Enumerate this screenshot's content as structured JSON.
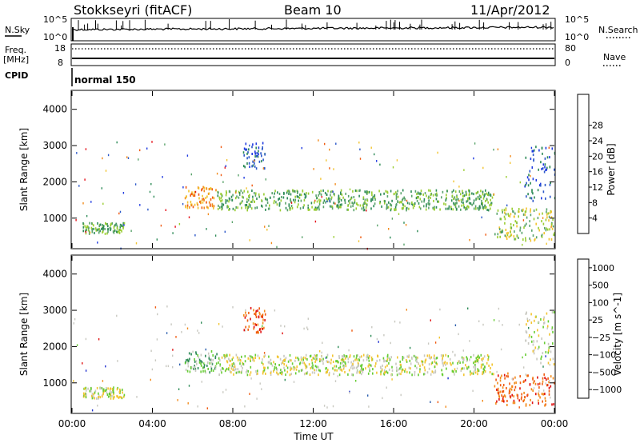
{
  "header": {
    "station": "Stokkseyri (fitACF)",
    "beam": "Beam 10",
    "date": "11/Apr/2012"
  },
  "noise_panel": {
    "left_label": "N.Sky",
    "right_label": "N.Search",
    "left_ticks": [
      "10^5",
      "10^0"
    ],
    "right_ticks": [
      "10^5",
      "10^0"
    ]
  },
  "freq_panel": {
    "left_label_1": "Freq.",
    "left_label_2": "[MHz]",
    "right_label": "Nave",
    "left_ticks": [
      "18",
      "8"
    ],
    "right_ticks": [
      "80",
      "0"
    ]
  },
  "cpid": {
    "label": "CPID",
    "value": "normal 150"
  },
  "x_axis": {
    "label": "Time UT",
    "ticks": [
      "00:00",
      "04:00",
      "08:00",
      "12:00",
      "16:00",
      "20:00",
      "00:00"
    ],
    "tick_hours": [
      0,
      4,
      8,
      12,
      16,
      20,
      24
    ]
  },
  "chart_data": [
    {
      "type": "heatmap",
      "name": "power",
      "ylabel": "Slant Range [km]",
      "xlim_hours": [
        0,
        24
      ],
      "ylim_km": [
        180,
        4500
      ],
      "y_ticks": [
        1000,
        2000,
        3000,
        4000
      ],
      "colorbar": {
        "label": "Power [dB]",
        "ticks": [
          "4",
          "8",
          "12",
          "16",
          "20",
          "24",
          "28"
        ],
        "colors": [
          "#1f3ae0",
          "#2b57c9",
          "#2e8b57",
          "#5aa36b",
          "#9acd32",
          "#f2c430",
          "#f28a1a",
          "#f05a0f",
          "#e5101a"
        ]
      },
      "regions": [
        {
          "t": [
            0.5,
            2.6
          ],
          "r": [
            600,
            900
          ],
          "level": 3
        },
        {
          "t": [
            5.6,
            7.2
          ],
          "r": [
            1300,
            1900
          ],
          "level": 6
        },
        {
          "t": [
            7.2,
            21.0
          ],
          "r": [
            1250,
            1800
          ],
          "level": 3
        },
        {
          "t": [
            8.5,
            9.6
          ],
          "r": [
            2400,
            3100
          ],
          "level": 1
        },
        {
          "t": [
            21.0,
            24.0
          ],
          "r": [
            400,
            1300
          ],
          "level": 4
        },
        {
          "t": [
            22.5,
            24.0
          ],
          "r": [
            1500,
            3000
          ],
          "level": 1
        }
      ]
    },
    {
      "type": "heatmap",
      "name": "velocity",
      "ylabel": "Slant Range [km]",
      "xlim_hours": [
        0,
        24
      ],
      "ylim_km": [
        180,
        4500
      ],
      "y_ticks": [
        1000,
        2000,
        3000,
        4000
      ],
      "colorbar": {
        "label": "Velocity [m s^-1]",
        "ticks": [
          "1000",
          "500",
          "100",
          "25",
          "−25",
          "−100",
          "−500",
          "−1000"
        ],
        "colors": [
          "#2030d0",
          "#2b5fae",
          "#2e8b57",
          "#66cc33",
          "#c8c8c0",
          "#f2c430",
          "#f28a1a",
          "#f05a0f",
          "#e01010"
        ]
      },
      "regions": [
        {
          "t": [
            0.5,
            2.6
          ],
          "r": [
            600,
            900
          ],
          "level": 4
        },
        {
          "t": [
            5.6,
            7.2
          ],
          "r": [
            1300,
            1900
          ],
          "level": 3
        },
        {
          "t": [
            7.2,
            21.0
          ],
          "r": [
            1250,
            1800
          ],
          "level": 4
        },
        {
          "t": [
            8.5,
            9.6
          ],
          "r": [
            2400,
            3100
          ],
          "level": 7
        },
        {
          "t": [
            21.0,
            24.0
          ],
          "r": [
            400,
            1300
          ],
          "level": 7
        },
        {
          "t": [
            22.5,
            24.0
          ],
          "r": [
            1500,
            3000
          ],
          "level": 4
        }
      ]
    }
  ]
}
